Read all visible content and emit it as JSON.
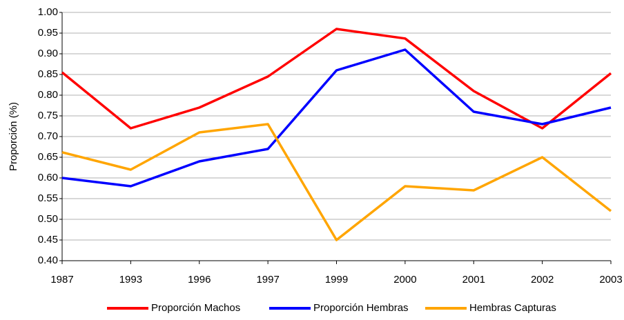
{
  "chart_data": {
    "type": "line",
    "y_label": "Proporción (%)",
    "categories": [
      "1987",
      "1993",
      "1996",
      "1997",
      "1999",
      "2000",
      "2001",
      "2002",
      "2003"
    ],
    "series": [
      {
        "name": "Proporción Machos",
        "color": "#ff0000",
        "values": [
          0.855,
          0.72,
          0.77,
          0.845,
          0.96,
          0.937,
          0.81,
          0.72,
          0.853
        ]
      },
      {
        "name": "Proporción Hembras",
        "color": "#0000ff",
        "values": [
          0.6,
          0.58,
          0.64,
          0.67,
          0.86,
          0.91,
          0.76,
          0.73,
          0.77
        ]
      },
      {
        "name": "Hembras Capturas",
        "color": "#ffa500",
        "values": [
          0.662,
          0.62,
          0.71,
          0.73,
          0.45,
          0.58,
          0.57,
          0.65,
          0.52
        ]
      }
    ],
    "ylim": [
      0.4,
      1.0
    ],
    "yticks": [
      {
        "value": 0.4,
        "label": "0.40"
      },
      0.45,
      {
        "value": 0.5,
        "label": "0.50"
      },
      0.55,
      {
        "value": 0.6,
        "label": "0.60"
      },
      0.65,
      {
        "value": 0.7,
        "label": "0.70"
      },
      0.75,
      {
        "value": 0.8,
        "label": "0.80"
      },
      0.85,
      {
        "value": 0.9,
        "label": "0.90"
      },
      0.95,
      {
        "value": 1.0,
        "label": "1.00"
      }
    ],
    "grid": true,
    "legend": "bottom"
  }
}
